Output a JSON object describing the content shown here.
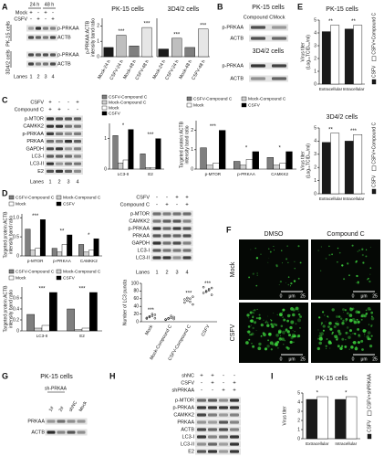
{
  "chart_data": [
    {
      "type": "bar",
      "title": "PK-15 cells",
      "y_label": [
        "p-PRKAA:ACTB",
        "intensity band ratio"
      ],
      "categories": [
        "Mock-24 h",
        "CSFV-24 h",
        "Mock-48 h",
        "CSFV-48 h"
      ],
      "series": [
        {
          "colors": [
            "#1a1a1a",
            "#bfbfbf",
            "#7f7f7f",
            "#e6e6e6"
          ],
          "values": [
            0.6,
            1.4,
            0.7,
            1.9
          ]
        }
      ],
      "significance": [
        null,
        "***",
        null,
        "***"
      ],
      "ylim": [
        0,
        2.5
      ],
      "yticks": [
        0,
        1,
        2
      ]
    },
    {
      "type": "bar",
      "title": "3D4/2 cells",
      "categories": [
        "Mock-24 h",
        "CSFV-24 h",
        "Mock-48 h",
        "CSFV-48 h"
      ],
      "series": [
        {
          "colors": [
            "#1a1a1a",
            "#bfbfbf",
            "#7f7f7f",
            "#e6e6e6"
          ],
          "values": [
            0.5,
            1.2,
            0.6,
            1.8
          ]
        }
      ],
      "significance": [
        null,
        "***",
        null,
        "***"
      ],
      "ylim": [
        0,
        2.5
      ]
    },
    {
      "type": "bar",
      "title": "PK-15 cells",
      "y_label": [
        "Virus titer",
        "(Log₁₀TCID₅₀/ml)"
      ],
      "categories": [
        "Extracellular",
        "Intracellular"
      ],
      "series": [
        {
          "name": "CSFV",
          "color": "#1a1a1a",
          "values": [
            4.1,
            4.3
          ]
        },
        {
          "name": "CSFV+Compound C",
          "color": "#ffffff",
          "values": [
            4.6,
            4.6
          ]
        }
      ],
      "significance": [
        "**",
        "**"
      ],
      "ylim": [
        0,
        5
      ],
      "yticks": [
        0,
        1,
        2,
        3,
        4,
        5
      ]
    },
    {
      "type": "bar",
      "title": "3D4/2 cells",
      "y_label": [
        "Virus titer",
        "(Log₁₀TCID₅₀/ml)"
      ],
      "categories": [
        "Extracellular",
        "Intracellular"
      ],
      "series": [
        {
          "name": "CSFV",
          "color": "#1a1a1a",
          "values": [
            3.9,
            4.0
          ]
        },
        {
          "name": "CSFV+Compound C",
          "color": "#ffffff",
          "values": [
            4.6,
            4.5
          ]
        }
      ],
      "significance": [
        "**",
        "***"
      ],
      "ylim": [
        0,
        5
      ],
      "yticks": [
        0,
        1,
        2,
        3,
        4,
        5
      ]
    },
    {
      "type": "bar",
      "categories": [
        "LC3-II",
        "E2"
      ],
      "series": [
        {
          "name": "CSFV-Compound C",
          "color": "#7f7f7f",
          "values": [
            1.1,
            0.5
          ]
        },
        {
          "name": "Mock-Compound C",
          "color": "#d0d0d0",
          "values": [
            0.2,
            0.05
          ]
        },
        {
          "name": "Mock",
          "color": "#ffffff",
          "values": [
            0.3,
            0.05
          ]
        },
        {
          "name": "CSFV",
          "color": "#000000",
          "values": [
            1.3,
            1.0
          ]
        }
      ],
      "significance": [
        "*",
        "***"
      ],
      "ylim": [
        0,
        1.5
      ],
      "yticks": [
        0,
        1
      ]
    },
    {
      "type": "bar",
      "y_label": [
        "Targeted protein:ACTB",
        "intensity band ratio"
      ],
      "categories": [
        "p-MTOR",
        "p-PRKAA",
        "CAMKK2"
      ],
      "series": [
        {
          "name": "CSFV-Compound C",
          "color": "#7f7f7f",
          "values": [
            1.1,
            0.4,
            0.6
          ]
        },
        {
          "name": "Mock-Compound C",
          "color": "#d0d0d0",
          "values": [
            0.2,
            0.2,
            0.2
          ]
        },
        {
          "name": "Mock",
          "color": "#ffffff",
          "values": [
            0.3,
            0.5,
            0.3
          ]
        },
        {
          "name": "CSFV",
          "color": "#000000",
          "values": [
            2.0,
            0.9,
            0.9
          ]
        }
      ],
      "significance": [
        "***",
        "*",
        "*"
      ],
      "ylim": [
        0,
        2.5
      ],
      "yticks": [
        0,
        1,
        2
      ]
    },
    {
      "type": "bar",
      "y_label": [
        "Targeted protein:ACTB",
        "intensity band ratio"
      ],
      "categories": [
        "p-MTOR",
        "p-PRKAA",
        "CAMKK2"
      ],
      "series": [
        {
          "name": "CSFV-Compound C",
          "color": "#7f7f7f",
          "values": [
            0.7,
            0.2,
            0.3
          ]
        },
        {
          "name": "Mock-Compound C",
          "color": "#d0d0d0",
          "values": [
            0.15,
            0.1,
            0.1
          ]
        },
        {
          "name": "Mock",
          "color": "#ffffff",
          "values": [
            0.2,
            0.3,
            0.15
          ]
        },
        {
          "name": "CSFV",
          "color": "#000000",
          "values": [
            0.95,
            0.55,
            0.45
          ]
        }
      ],
      "significance": [
        "***",
        "**",
        "*"
      ],
      "ylim": [
        0,
        1.1
      ],
      "yticks": [
        0,
        0.5,
        {
          "value": 1,
          "label": "1.0"
        }
      ]
    },
    {
      "type": "bar",
      "y_label": [
        "Targeted protein:ACTB",
        "intensity band ratio"
      ],
      "categories": [
        "LC3-II",
        "E2"
      ],
      "series": [
        {
          "name": "CSFV-Compound C",
          "color": "#7f7f7f",
          "values": [
            0.3,
            0.4
          ]
        },
        {
          "name": "Mock-Compound C",
          "color": "#d0d0d0",
          "values": [
            0.05,
            0.02
          ]
        },
        {
          "name": "Mock",
          "color": "#ffffff",
          "values": [
            0.1,
            0.05
          ]
        },
        {
          "name": "CSFV",
          "color": "#000000",
          "values": [
            0.7,
            0.7
          ]
        }
      ],
      "significance": [
        "***",
        "***"
      ],
      "ylim": [
        0,
        0.8
      ],
      "yticks": [
        0,
        0.2,
        0.4,
        0.6
      ]
    },
    {
      "type": "dot",
      "y_label": [
        "Number of LC3 puncta"
      ],
      "categories": [
        "Mock",
        "Mock-Compound C",
        "CSFV-Compound C",
        "CSFV"
      ],
      "values": [
        [
          8,
          12,
          15,
          18,
          10,
          14,
          20,
          9
        ],
        [
          5,
          8,
          10,
          12,
          6,
          9,
          15,
          7
        ],
        [
          50,
          55,
          60,
          45,
          58,
          62,
          52,
          65
        ],
        [
          75,
          80,
          85,
          70,
          90,
          78,
          82,
          88
        ]
      ],
      "significance": [
        "***",
        null,
        "***",
        "***"
      ],
      "ylim": [
        0,
        100
      ],
      "yticks": [
        0,
        20,
        40,
        60,
        80,
        100
      ]
    },
    {
      "type": "bar",
      "title": "PK-15 cells",
      "y_label": [
        "Virus titer"
      ],
      "categories": [
        "Extracellular",
        "Intracellular"
      ],
      "series": [
        {
          "name": "CSFV",
          "color": "#1a1a1a",
          "values": [
            4.3,
            4.3
          ]
        },
        {
          "name": "CSFV+shPRKAA",
          "color": "#ffffff",
          "values": [
            4.6,
            4.6
          ]
        }
      ],
      "significance": [
        "*",
        "*"
      ],
      "ylim": [
        0,
        5
      ],
      "yticks": [
        0,
        1,
        2,
        3,
        4,
        5
      ]
    }
  ],
  "panel_labels": [
    "A",
    "B",
    "C",
    "D",
    "E",
    "F",
    "G",
    "H",
    "I"
  ],
  "blots": {
    "a": {
      "times": [
        "24 h",
        "48 h"
      ],
      "conditions": [
        {
          "name": "Mock",
          "signs": [
            "+",
            "-",
            "+",
            "-"
          ]
        },
        {
          "name": "CSFV",
          "signs": [
            "-",
            "+",
            "-",
            "+"
          ]
        }
      ],
      "groups": [
        {
          "name": "PK-15 cells",
          "bands": [
            "p-PRKAA",
            "ACTB"
          ]
        },
        {
          "name": "3D4/2 cells",
          "bands": [
            "p-PRKAA",
            "ACTB"
          ]
        }
      ],
      "lanes_label": "Lanes",
      "lanes": [
        1,
        2,
        3,
        4
      ]
    },
    "b": {
      "columns": [
        "Compound C",
        "Mock"
      ],
      "groups": [
        {
          "name": "PK-15 cells",
          "bands": [
            "p-PRKAA",
            "ACTB"
          ]
        },
        {
          "name": "3D4/2 cells",
          "bands": [
            "p-PRKAA",
            "ACTB"
          ]
        }
      ]
    },
    "c": {
      "conditions": [
        {
          "name": "CSFV",
          "signs": [
            "+",
            "-",
            "-",
            "+"
          ]
        },
        {
          "name": "Compound C",
          "signs": [
            "+",
            "+",
            "-",
            "-"
          ]
        }
      ],
      "bands": [
        "p-MTOR",
        "CAMKK2",
        "p-PRKAA",
        "PRKAA",
        "GAPDH",
        "LC3-I",
        "LC3-II",
        "E2"
      ],
      "lanes_label": "Lanes",
      "lanes": [
        1,
        2,
        3,
        4
      ]
    },
    "d": {
      "conditions": [
        {
          "name": "CSFV",
          "signs": [
            "-",
            "-",
            "+",
            "+"
          ]
        },
        {
          "name": "Compound C",
          "signs": [
            "-",
            "+",
            "-",
            "+"
          ]
        }
      ],
      "bands": [
        "p-MTOR",
        "CAMKK2",
        "p-PRKAA",
        "PRKAA",
        "GAPDH",
        "LC3-I",
        "LC3-II"
      ],
      "lanes_label": "Lanes",
      "lanes": [
        1,
        2,
        3,
        4
      ]
    },
    "g": {
      "title": "PK-15 cells",
      "column_group": "sh-PRKAA",
      "columns": [
        "1#",
        "2#",
        "shNC",
        "Mock"
      ],
      "bands": [
        "PRKAA",
        "ACTB"
      ]
    },
    "h": {
      "conditions": [
        {
          "name": "shNC",
          "signs": [
            "+",
            "+",
            "-",
            "-"
          ]
        },
        {
          "name": "CSFV",
          "signs": [
            "-",
            "+",
            "-",
            "+"
          ]
        },
        {
          "name": "shPRKAA",
          "signs": [
            "-",
            "-",
            "+",
            "+"
          ]
        }
      ],
      "bands": [
        "p-MTOR",
        "p-PRKAA",
        "CAMKK2",
        "PRKAA",
        "ACTB",
        "LC3-I",
        "LC3-II",
        "E2"
      ]
    }
  },
  "images": {
    "columns": [
      "DMSO",
      "Compound C"
    ],
    "rows": [
      "Mock",
      "CSFV"
    ],
    "scale_bar": {
      "start": 0,
      "unit": "μm",
      "end": 25
    }
  }
}
